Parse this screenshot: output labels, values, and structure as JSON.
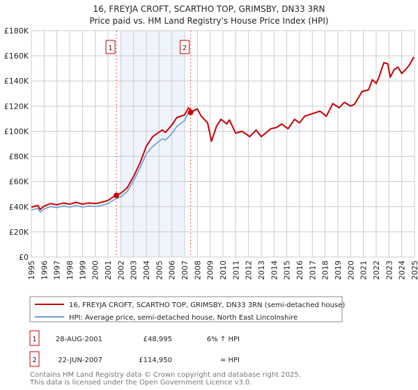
{
  "title": "16, FREYJA CROFT, SCARTHO TOP, GRIMSBY, DN33 3RN",
  "subtitle": "Price paid vs. HM Land Registry's House Price Index (HPI)",
  "colors": {
    "property": "#cc0000",
    "hpi": "#6a9ad4",
    "shade": "#eef3fc",
    "marker_border": "#cc0000"
  },
  "chart_data": {
    "type": "line",
    "title": "16, FREYJA CROFT, SCARTHO TOP, GRIMSBY, DN33 3RN",
    "subtitle": "Price paid vs. HM Land Registry's House Price Index (HPI)",
    "xlim": [
      1995,
      2025
    ],
    "ylim": [
      0,
      180000
    ],
    "yticks": [
      0,
      20000,
      40000,
      60000,
      80000,
      100000,
      120000,
      140000,
      160000,
      180000
    ],
    "ytick_labels": [
      "£0",
      "£20K",
      "£40K",
      "£60K",
      "£80K",
      "£100K",
      "£120K",
      "£140K",
      "£160K",
      "£180K"
    ],
    "xticks": [
      "1995",
      "1996",
      "1997",
      "1998",
      "1999",
      "2000",
      "2001",
      "2002",
      "2003",
      "2004",
      "2005",
      "2006",
      "2007",
      "2008",
      "2009",
      "2010",
      "2011",
      "2012",
      "2013",
      "2014",
      "2015",
      "2016",
      "2017",
      "2018",
      "2019",
      "2020",
      "2021",
      "2022",
      "2023",
      "2024",
      "2025"
    ],
    "grid": true,
    "shaded_range": [
      2002.0,
      2007.0
    ],
    "series": [
      {
        "name": "16, FREYJA CROFT, SCARTHO TOP, GRIMSBY, DN33 3RN (semi-detached house)",
        "x": [
          1995,
          1995.5,
          1995.7,
          1996,
          1996.5,
          1997,
          1997.5,
          1998,
          1998.5,
          1999,
          1999.5,
          2000,
          2000.5,
          2001,
          2001.6,
          2002,
          2002.5,
          2003,
          2003.5,
          2004,
          2004.5,
          2005.25,
          2005.5,
          2006,
          2006.4,
          2007,
          2007.3,
          2007.6,
          2008,
          2008.3,
          2008.8,
          2009.1,
          2009.5,
          2009.85,
          2010.3,
          2010.5,
          2011,
          2011.5,
          2012.1,
          2012.6,
          2013,
          2013.75,
          2014.2,
          2014.6,
          2015.1,
          2015.6,
          2016,
          2016.4,
          2017,
          2017.6,
          2018.1,
          2018.6,
          2019.1,
          2019.5,
          2020,
          2020.3,
          2020.9,
          2021.4,
          2021.7,
          2022,
          2022.2,
          2022.6,
          2022.9,
          2023.1,
          2023.4,
          2023.7,
          2024,
          2024.3,
          2024.6,
          2024.95
        ],
        "y": [
          39600,
          41000,
          37700,
          40500,
          42500,
          41500,
          43000,
          42000,
          43500,
          42000,
          43000,
          42500,
          43500,
          45000,
          49000,
          50600,
          55000,
          64000,
          74500,
          88000,
          95700,
          101000,
          99000,
          105000,
          111000,
          113000,
          118700,
          116000,
          117800,
          112000,
          106700,
          92000,
          104000,
          109500,
          105800,
          109000,
          98500,
          100000,
          95700,
          101000,
          95700,
          102000,
          103000,
          105800,
          102000,
          109500,
          106700,
          112000,
          114000,
          116000,
          112000,
          122000,
          118700,
          123000,
          120000,
          121500,
          131600,
          133000,
          141000,
          138000,
          142600,
          154600,
          153700,
          143000,
          149000,
          151000,
          146000,
          149000,
          152800,
          159000
        ]
      },
      {
        "name": "HPI: Average price, semi-detached house, North East Lincolnshire",
        "x": [
          1995,
          1995.5,
          1995.7,
          1996,
          1996.5,
          1997,
          1997.5,
          1998,
          1998.5,
          1999,
          1999.5,
          2000,
          2000.5,
          2001,
          2001.6,
          2002,
          2002.5,
          2003,
          2003.5,
          2004,
          2004.5,
          2005.25,
          2005.5,
          2006,
          2006.4,
          2007,
          2007.3,
          2007.6,
          2008,
          2008.3,
          2008.8,
          2009.1,
          2009.5,
          2009.85,
          2010.3,
          2010.5,
          2011,
          2011.5,
          2012.1,
          2012.6,
          2013,
          2013.75,
          2014.2,
          2014.6,
          2015.1,
          2015.6,
          2016,
          2016.4,
          2017,
          2017.6,
          2018.1,
          2018.6,
          2019.1,
          2019.5,
          2020,
          2020.3,
          2020.9,
          2021.4,
          2021.7,
          2022,
          2022.2,
          2022.6,
          2022.9,
          2023.1,
          2023.4,
          2023.7,
          2024,
          2024.3,
          2024.6,
          2024.95
        ],
        "y": [
          37400,
          38700,
          35600,
          38200,
          40100,
          39200,
          40600,
          39600,
          41000,
          39600,
          40600,
          40100,
          41000,
          42500,
          46200,
          47800,
          52000,
          60500,
          70500,
          82000,
          88000,
          94000,
          93000,
          98000,
          104000,
          108500,
          115000,
          115500,
          117500,
          111800,
          106500,
          91800,
          103800,
          109300,
          105600,
          108800,
          98300,
          99800,
          95500,
          100800,
          95500,
          101800,
          102800,
          105600,
          101800,
          109300,
          106500,
          111800,
          113800,
          115800,
          111800,
          121800,
          118500,
          122800,
          119800,
          121300,
          131400,
          132800,
          140800,
          137800,
          142400,
          154400,
          153500,
          142800,
          148800,
          150800,
          145800,
          148800,
          152600,
          158800
        ]
      }
    ],
    "sales": [
      {
        "label": "1",
        "x": 2001.66,
        "y": 48995
      },
      {
        "label": "2",
        "x": 2007.47,
        "y": 114950
      }
    ]
  },
  "legend": {
    "property": "16, FREYJA CROFT, SCARTHO TOP, GRIMSBY, DN33 3RN (semi-detached house)",
    "hpi": "HPI: Average price, semi-detached house, North East Lincolnshire"
  },
  "transactions": [
    {
      "num": "1",
      "date": "28-AUG-2001",
      "price": "£48,995",
      "hpi": "6% ↑ HPI"
    },
    {
      "num": "2",
      "date": "22-JUN-2007",
      "price": "£114,950",
      "hpi": "≈ HPI"
    }
  ],
  "footer": {
    "line1": "Contains HM Land Registry data © Crown copyright and database right 2025.",
    "line2": "This data is licensed under the Open Government Licence v3.0."
  }
}
